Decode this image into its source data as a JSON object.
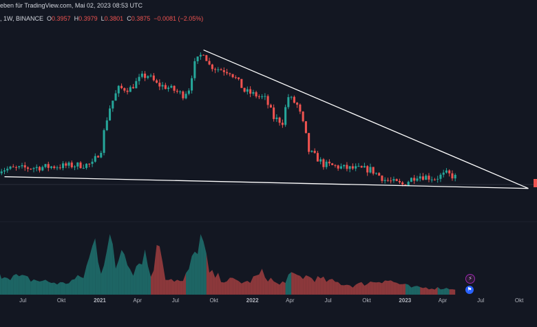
{
  "header": {
    "published": "eben für TradingView.com, Mai 02, 2023 08:53 UTC",
    "symbol_info": ", 1W, BINANCE",
    "o_label": "O",
    "o": "0.3957",
    "h_label": "H",
    "h": "0.3979",
    "l_label": "L",
    "l": "0.3801",
    "c_label": "C",
    "c": "0.3875",
    "change": "−0.0081 (−2.05%)"
  },
  "icons": {
    "lightning": "lightning-icon",
    "flag": "us-flag-icon"
  },
  "colors": {
    "up": "#26a69a",
    "down": "#ef5350",
    "background": "#131722",
    "trendline": "#ffffff"
  },
  "chart_data": {
    "type": "candlestick",
    "timeframe": "1W",
    "x_ticks": [
      "Jul",
      "Okt",
      "2021",
      "Apr",
      "Jul",
      "Okt",
      "2022",
      "Apr",
      "Jul",
      "Okt",
      "2023",
      "Apr",
      "Jul",
      "Okt"
    ],
    "x_start": "2020-05-04",
    "x_end": "2023-11-06",
    "y_range": [
      0.25,
      3.4
    ],
    "y_axis_visible": false,
    "price_waypoints": [
      [
        "2020-05-04",
        0.44
      ],
      [
        "2020-12-14",
        0.48
      ],
      [
        "2021-01-04",
        0.62
      ],
      [
        "2021-01-25",
        1.25
      ],
      [
        "2021-02-15",
        1.72
      ],
      [
        "2021-03-15",
        1.72
      ],
      [
        "2021-04-12",
        2.1
      ],
      [
        "2021-04-26",
        2.15
      ],
      [
        "2021-05-17",
        1.85
      ],
      [
        "2021-06-14",
        1.75
      ],
      [
        "2021-07-19",
        1.55
      ],
      [
        "2021-08-02",
        1.72
      ],
      [
        "2021-08-16",
        2.6
      ],
      [
        "2021-08-30",
        3.0
      ],
      [
        "2021-09-06",
        3.2
      ],
      [
        "2021-09-20",
        2.55
      ],
      [
        "2021-10-11",
        2.4
      ],
      [
        "2021-11-08",
        2.3
      ],
      [
        "2021-12-13",
        1.65
      ],
      [
        "2022-01-31",
        1.45
      ],
      [
        "2022-02-21",
        1.05
      ],
      [
        "2022-03-14",
        0.98
      ],
      [
        "2022-03-28",
        1.5
      ],
      [
        "2022-04-18",
        1.3
      ],
      [
        "2022-05-16",
        0.6
      ],
      [
        "2022-06-20",
        0.48
      ],
      [
        "2022-08-15",
        0.45
      ],
      [
        "2022-10-10",
        0.44
      ],
      [
        "2022-11-14",
        0.37
      ],
      [
        "2022-12-26",
        0.34
      ],
      [
        "2023-01-30",
        0.4
      ],
      [
        "2023-03-13",
        0.38
      ],
      [
        "2023-04-10",
        0.41
      ],
      [
        "2023-05-01",
        0.3875
      ]
    ],
    "volume_waypoints": [
      [
        "2020-05-04",
        0.35
      ],
      [
        "2020-07-20",
        0.25
      ],
      [
        "2020-10-05",
        0.18
      ],
      [
        "2020-11-23",
        0.3
      ],
      [
        "2020-12-21",
        0.9
      ],
      [
        "2021-01-04",
        0.4
      ],
      [
        "2021-01-25",
        1.0
      ],
      [
        "2021-02-08",
        0.4
      ],
      [
        "2021-02-22",
        0.8
      ],
      [
        "2021-03-22",
        0.4
      ],
      [
        "2021-04-19",
        0.7
      ],
      [
        "2021-05-03",
        0.3
      ],
      [
        "2021-05-24",
        0.9
      ],
      [
        "2021-06-07",
        0.3
      ],
      [
        "2021-07-19",
        0.2
      ],
      [
        "2021-08-16",
        0.65
      ],
      [
        "2021-08-30",
        1.0
      ],
      [
        "2021-09-20",
        0.35
      ],
      [
        "2021-10-25",
        0.25
      ],
      [
        "2021-12-20",
        0.2
      ],
      [
        "2022-01-24",
        0.35
      ],
      [
        "2022-03-07",
        0.15
      ],
      [
        "2022-03-28",
        0.3
      ],
      [
        "2022-05-09",
        0.3
      ],
      [
        "2022-06-13",
        0.25
      ],
      [
        "2022-08-29",
        0.15
      ],
      [
        "2022-11-14",
        0.25
      ],
      [
        "2023-01-16",
        0.12
      ],
      [
        "2023-05-01",
        0.1
      ]
    ],
    "trendlines": [
      {
        "from": [
          "2021-09-06",
          3.3
        ],
        "to": [
          "2023-10-23",
          0.32
        ]
      },
      {
        "from": [
          "2020-05-18",
          0.39
        ],
        "to": [
          "2023-10-23",
          0.32
        ]
      }
    ],
    "grid": false,
    "legend": "none"
  }
}
